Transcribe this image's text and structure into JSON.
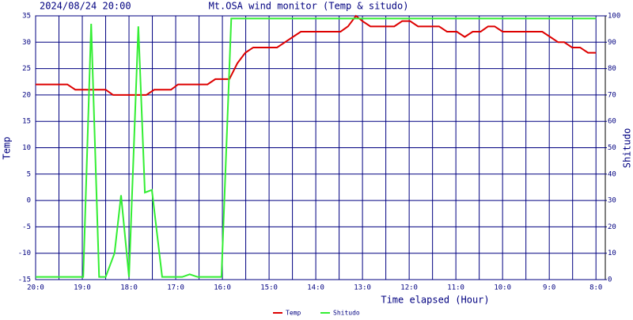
{
  "chart_data": {
    "type": "line",
    "title": "Mt.OSA wind monitor (Temp & situdo)",
    "subtitle": "2024/08/24 20:00",
    "x_label": "Time elapsed (Hour)",
    "y_label": "Temp",
    "y2_label": "Shitudo",
    "xlim": [
      0,
      12.2
    ],
    "xticks": [
      {
        "value": 0,
        "label": "20:0"
      },
      {
        "value": 1,
        "label": "19:0"
      },
      {
        "value": 2,
        "label": "18:0"
      },
      {
        "value": 3,
        "label": "17:0"
      },
      {
        "value": 4,
        "label": "16:0"
      },
      {
        "value": 5,
        "label": "15:0"
      },
      {
        "value": 6,
        "label": "14:0"
      },
      {
        "value": 7,
        "label": "13:0"
      },
      {
        "value": 8,
        "label": "12:0"
      },
      {
        "value": 9,
        "label": "11:0"
      },
      {
        "value": 10,
        "label": "10:0"
      },
      {
        "value": 11,
        "label": "9:0"
      },
      {
        "value": 12,
        "label": "8:0"
      }
    ],
    "x_minor_ticks": [
      0.5,
      1.5,
      2.5,
      3.5,
      4.5,
      5.5,
      6.5,
      7.5,
      8.5,
      9.5,
      10.5,
      11.5
    ],
    "ylim": [
      -15,
      35
    ],
    "yticks": [
      -15,
      -10,
      -5,
      0,
      5,
      10,
      15,
      20,
      25,
      30,
      35
    ],
    "y2lim": [
      0,
      100
    ],
    "y2ticks": [
      0,
      10,
      20,
      30,
      40,
      50,
      60,
      70,
      80,
      90,
      100
    ],
    "grid": true,
    "grid_color": "#000080",
    "legend": "bottom",
    "series": [
      {
        "name": "Temp",
        "color": "#dd0000",
        "x": [
          0,
          0.68,
          0.85,
          1.5,
          1.66,
          2.37,
          2.54,
          2.9,
          3.05,
          3.68,
          3.85,
          4.15,
          4.32,
          4.49,
          4.66,
          5.17,
          5.34,
          5.51,
          5.68,
          6.53,
          6.69,
          6.86,
          7.0,
          7.17,
          7.68,
          7.85,
          8.02,
          8.19,
          8.64,
          8.81,
          9.02,
          9.19,
          9.36,
          9.53,
          9.69,
          9.83,
          10.0,
          10.85,
          11.02,
          11.19,
          11.32,
          11.49,
          11.66,
          11.83,
          12.0
        ],
        "values": [
          22,
          22,
          21,
          21,
          20,
          20,
          21,
          21,
          22,
          22,
          23,
          23,
          26,
          28,
          29,
          29,
          30,
          31,
          32,
          32,
          33,
          35,
          34,
          33,
          33,
          34,
          34,
          33,
          33,
          32,
          32,
          31,
          32,
          32,
          33,
          33,
          32,
          32,
          31,
          30,
          30,
          29,
          29,
          28,
          28
        ]
      },
      {
        "name": "Shitudo",
        "color": "#33ee33",
        "axis": "y2",
        "x": [
          0,
          1.02,
          1.19,
          1.36,
          1.5,
          1.69,
          1.83,
          2.0,
          2.2,
          2.34,
          2.49,
          2.71,
          3.14,
          3.3,
          3.47,
          3.98,
          4.19,
          12.0
        ],
        "values": [
          1,
          1,
          97,
          1,
          1,
          10,
          32,
          1,
          96,
          33,
          34,
          1,
          1,
          2,
          1,
          1,
          99,
          99
        ]
      }
    ]
  }
}
